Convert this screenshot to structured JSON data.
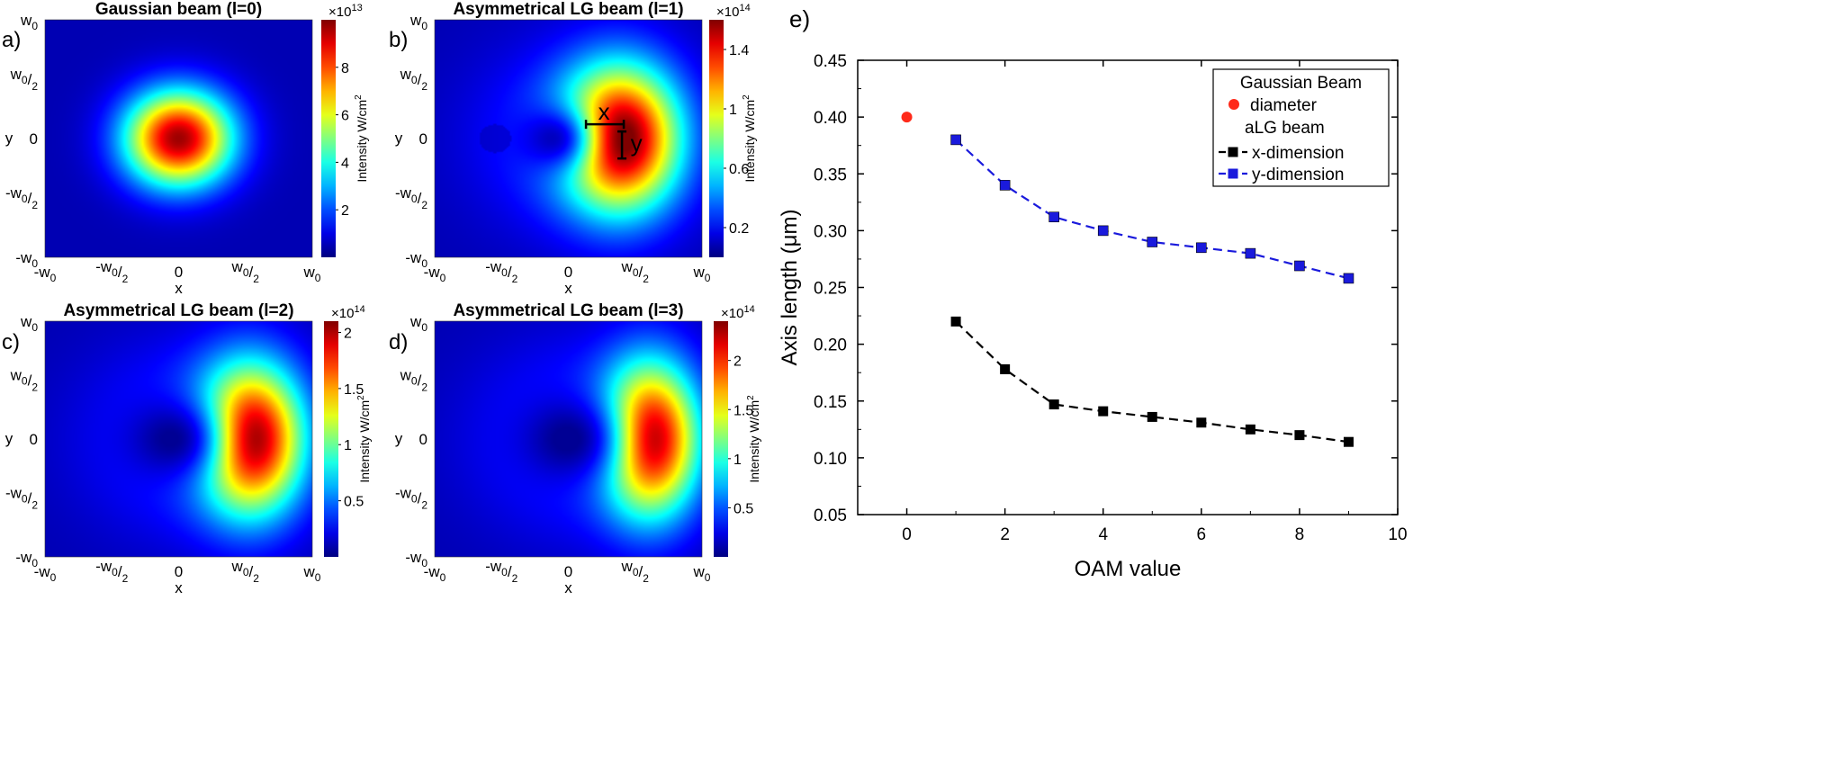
{
  "chart_data": [
    {
      "type": "heatmap",
      "panel_label": "a)",
      "title": "Gaussian beam (l=0)",
      "xlabel": "x",
      "ylabel": "y",
      "ticks": [
        "-w0",
        "-w0/2",
        "0",
        "w0/2",
        "w0"
      ],
      "colorbar": {
        "label": "Intensity W/cm",
        "label_sup": "2",
        "exponent": "×10",
        "exponent_sup": "13",
        "ticks": [
          "2",
          "4",
          "6",
          "8"
        ],
        "range": [
          0,
          10
        ]
      },
      "pattern": "gaussian"
    },
    {
      "type": "heatmap",
      "panel_label": "b)",
      "title": "Asymmetrical LG beam (l=1)",
      "xlabel": "x",
      "ylabel": "y",
      "ticks": [
        "-w0",
        "-w0/2",
        "0",
        "w0/2",
        "w0"
      ],
      "colorbar": {
        "label": "Intensity W/cm",
        "label_sup": "2",
        "exponent": "×10",
        "exponent_sup": "14",
        "ticks": [
          "0.2",
          "0.6",
          "1",
          "1.4"
        ],
        "range": [
          0,
          1.6
        ]
      },
      "pattern": "alg1",
      "annotations": [
        "x",
        "y"
      ]
    },
    {
      "type": "heatmap",
      "panel_label": "c)",
      "title": "Asymmetrical LG beam (l=2)",
      "xlabel": "x",
      "ylabel": "y",
      "ticks": [
        "-w0",
        "-w0/2",
        "0",
        "w0/2",
        "w0"
      ],
      "colorbar": {
        "label": "Intensity W/cm",
        "label_sup": "2",
        "exponent": "×10",
        "exponent_sup": "14",
        "ticks": [
          "0.5",
          "1",
          "1.5",
          "2"
        ],
        "range": [
          0,
          2.1
        ]
      },
      "pattern": "alg2"
    },
    {
      "type": "heatmap",
      "panel_label": "d)",
      "title": "Asymmetrical LG beam (l=3)",
      "xlabel": "x",
      "ylabel": "y",
      "ticks": [
        "-w0",
        "-w0/2",
        "0",
        "w0/2",
        "w0"
      ],
      "colorbar": {
        "label": "Intensity W/cm",
        "label_sup": "2",
        "exponent": "×10",
        "exponent_sup": "14",
        "ticks": [
          "0.5",
          "1",
          "1.5",
          "2"
        ],
        "range": [
          0,
          2.4
        ]
      },
      "pattern": "alg3"
    },
    {
      "type": "scatter",
      "panel_label": "e)",
      "title": "",
      "xlabel": "OAM value",
      "ylabel": "Axis length (μm)",
      "xlim": [
        -1,
        10
      ],
      "ylim": [
        0.05,
        0.45
      ],
      "xticks": [
        0,
        2,
        4,
        6,
        8,
        10
      ],
      "yticks": [
        0.05,
        0.1,
        0.15,
        0.2,
        0.25,
        0.3,
        0.35,
        0.4,
        0.45
      ],
      "series": [
        {
          "name": "diameter",
          "group": "Gaussian Beam",
          "marker": "circle",
          "color": "#ff2a1a",
          "line": false,
          "x": [
            0
          ],
          "y": [
            0.4
          ]
        },
        {
          "name": "x-dimension",
          "group": "aLG beam",
          "marker": "square",
          "color": "#000000",
          "line": true,
          "x": [
            1,
            2,
            3,
            4,
            5,
            6,
            7,
            8,
            9
          ],
          "y": [
            0.22,
            0.178,
            0.147,
            0.141,
            0.136,
            0.131,
            0.125,
            0.12,
            0.114
          ]
        },
        {
          "name": "y-dimension",
          "group": "aLG beam",
          "marker": "square",
          "color": "#1a1adc",
          "line": true,
          "x": [
            1,
            2,
            3,
            4,
            5,
            6,
            7,
            8,
            9
          ],
          "y": [
            0.38,
            0.34,
            0.312,
            0.3,
            0.29,
            0.285,
            0.28,
            0.269,
            0.258
          ]
        }
      ],
      "legend": {
        "position": "top-right",
        "heading1": "Gaussian Beam",
        "heading2": "aLG beam"
      }
    }
  ]
}
